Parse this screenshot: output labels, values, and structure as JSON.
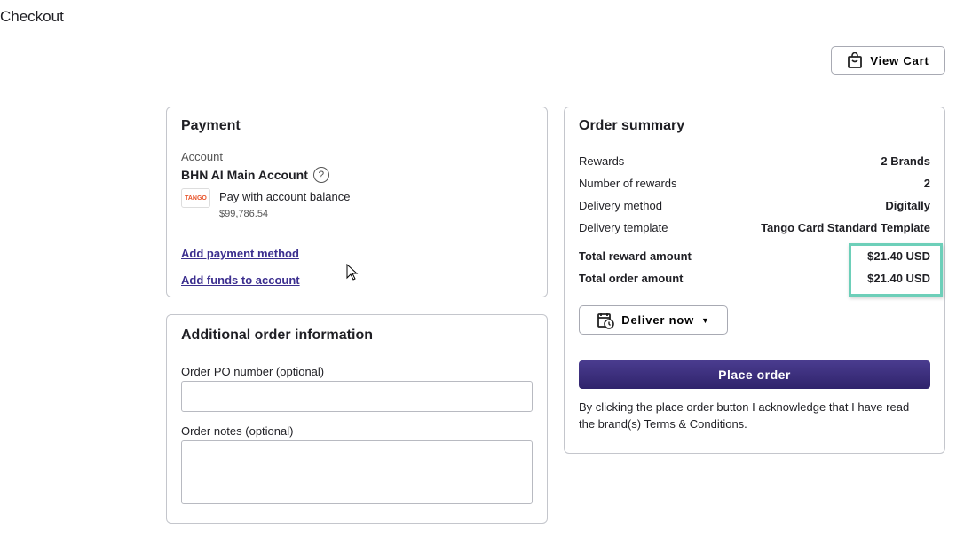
{
  "page": {
    "title": "Checkout"
  },
  "cart": {
    "label": "View Cart",
    "icon": "shopping-bag-icon"
  },
  "payment": {
    "title": "Payment",
    "account_label": "Account",
    "account_name": "BHN AI Main Account",
    "logo_text": "TANGO",
    "method": "Pay with account balance",
    "balance": "$99,786.54",
    "add_payment": "Add payment method",
    "add_funds": "Add funds to account"
  },
  "additional": {
    "title": "Additional order information",
    "po_label": "Order PO number (optional)",
    "po_value": "",
    "notes_label": "Order notes (optional)",
    "notes_value": ""
  },
  "summary": {
    "title": "Order summary",
    "rows": [
      {
        "label": "Rewards",
        "value": "2 Brands"
      },
      {
        "label": "Number of rewards",
        "value": "2"
      },
      {
        "label": "Delivery method",
        "value": "Digitally"
      },
      {
        "label": "Delivery template",
        "value": "Tango Card Standard Template"
      },
      {
        "label": "Total reward amount",
        "value": "$21.40 USD"
      },
      {
        "label": "Total order amount",
        "value": "$21.40 USD"
      }
    ],
    "deliver": "Deliver now",
    "place_order": "Place order",
    "disclaimer": "By clicking the place order button I acknowledge that I have read the brand(s) Terms & Conditions.",
    "highlight_color": "#6dcfb9",
    "button_color": "#3b2e7e"
  }
}
